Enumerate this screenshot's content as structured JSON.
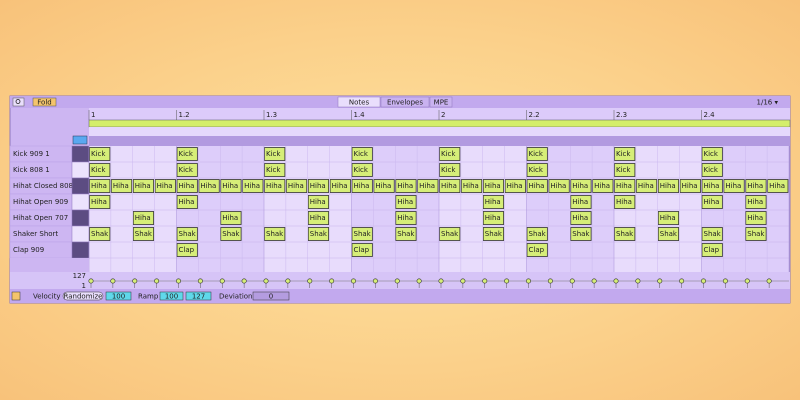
{
  "toolbar": {
    "fold": "Fold",
    "tabs": [
      "Notes",
      "Envelopes",
      "MPE"
    ],
    "grid": "1/16 ▾"
  },
  "ruler": [
    "1",
    "1.2",
    "1.3",
    "1.4",
    "2",
    "2.2",
    "2.3",
    "2.4"
  ],
  "rows": [
    {
      "name": "Kick 909 1",
      "cells": [
        "Kick",
        null,
        null,
        null,
        "Kick",
        null,
        null,
        null,
        "Kick",
        null,
        null,
        null,
        "Kick",
        null,
        null,
        null,
        "Kick",
        null,
        null,
        null,
        "Kick",
        null,
        null,
        null,
        "Kick",
        null,
        null,
        null,
        "Kick",
        null,
        null,
        null
      ]
    },
    {
      "name": "Kick 808 1",
      "cells": [
        "Kick",
        null,
        null,
        null,
        "Kick",
        null,
        null,
        null,
        "Kick",
        null,
        null,
        null,
        "Kick",
        null,
        null,
        null,
        "Kick",
        null,
        null,
        null,
        "Kick",
        null,
        null,
        null,
        "Kick",
        null,
        null,
        null,
        "Kick",
        null,
        null,
        null
      ]
    },
    {
      "name": "Hihat Closed 808 2",
      "cells": [
        "Hiha",
        "Hiha",
        "Hiha",
        "Hiha",
        "Hiha",
        "Hiha",
        "Hiha",
        "Hiha",
        "Hiha",
        "Hiha",
        "Hiha",
        "Hiha",
        "Hiha",
        "Hiha",
        "Hiha",
        "Hiha",
        "Hiha",
        "Hiha",
        "Hiha",
        "Hiha",
        "Hiha",
        "Hiha",
        "Hiha",
        "Hiha",
        "Hiha",
        "Hiha",
        "Hiha",
        "Hiha",
        "Hiha",
        "Hiha",
        "Hiha",
        "Hiha"
      ]
    },
    {
      "name": "Hihat Open 909",
      "cells": [
        "Hiha",
        null,
        null,
        null,
        "Hiha",
        null,
        null,
        null,
        null,
        null,
        "Hiha",
        null,
        null,
        null,
        "Hiha",
        null,
        null,
        null,
        "Hiha",
        null,
        null,
        null,
        "Hiha",
        null,
        "Hiha",
        null,
        null,
        null,
        "Hiha",
        null,
        "Hiha",
        null
      ]
    },
    {
      "name": "Hihat Open 707",
      "cells": [
        null,
        null,
        "Hiha",
        null,
        null,
        null,
        "Hiha",
        null,
        null,
        null,
        "Hiha",
        null,
        null,
        null,
        "Hiha",
        null,
        null,
        null,
        "Hiha",
        null,
        null,
        null,
        "Hiha",
        null,
        null,
        null,
        "Hiha",
        null,
        null,
        null,
        "Hiha",
        null
      ]
    },
    {
      "name": "Shaker Short",
      "cells": [
        "Shak",
        null,
        "Shak",
        null,
        "Shak",
        null,
        "Shak",
        null,
        "Shak",
        null,
        "Shak",
        null,
        "Shak",
        null,
        "Shak",
        null,
        "Shak",
        null,
        "Shak",
        null,
        "Shak",
        null,
        "Shak",
        null,
        "Shak",
        null,
        "Shak",
        null,
        "Shak",
        null,
        "Shak",
        null
      ]
    },
    {
      "name": "Clap 909",
      "cells": [
        null,
        null,
        null,
        null,
        "Clap",
        null,
        null,
        null,
        null,
        null,
        null,
        null,
        "Clap",
        null,
        null,
        null,
        null,
        null,
        null,
        null,
        "Clap",
        null,
        null,
        null,
        null,
        null,
        null,
        null,
        "Clap",
        null,
        null,
        null
      ]
    }
  ],
  "velocity": {
    "max": 127,
    "min": 1
  },
  "footer": {
    "label": "Velocity",
    "randomize": "Randomize",
    "random_value": 100,
    "ramp": "Ramp",
    "ramp_start": 100,
    "ramp_end": 127,
    "deviation": "Deviation",
    "deviation_value": 0
  }
}
